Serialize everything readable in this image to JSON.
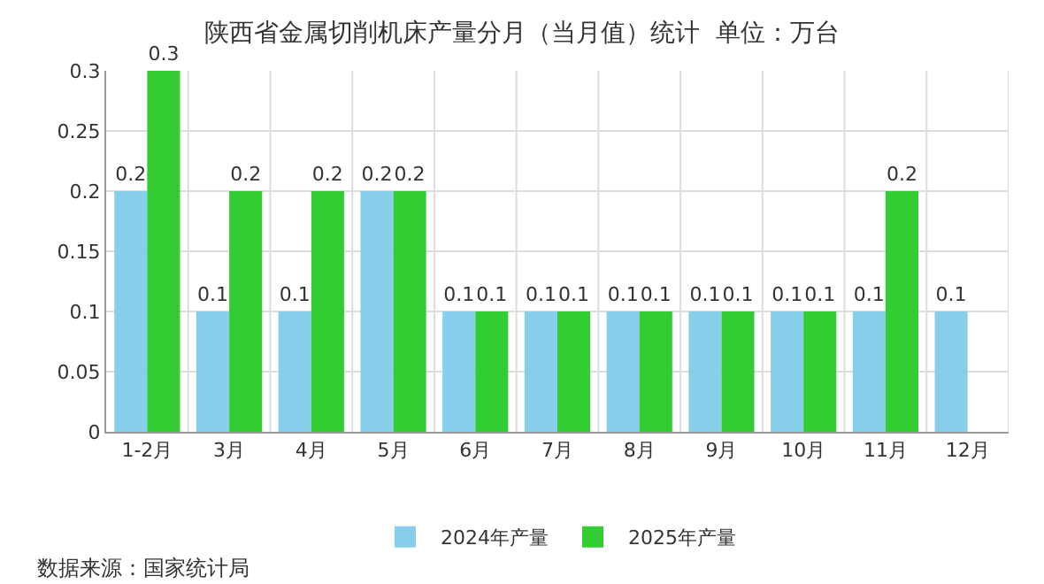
{
  "chart_data": {
    "type": "bar",
    "title": "陕西省金属切削机床产量分月（当月值）统计  单位：万台",
    "categories": [
      "1-2月",
      "3月",
      "4月",
      "5月",
      "6月",
      "7月",
      "8月",
      "9月",
      "10月",
      "11月",
      "12月"
    ],
    "series": [
      {
        "name": "2024年产量",
        "color": "#87ceeb",
        "values": [
          0.2,
          0.1,
          0.1,
          0.2,
          0.1,
          0.1,
          0.1,
          0.1,
          0.1,
          0.1,
          0.1
        ]
      },
      {
        "name": "2025年产量",
        "color": "#33cc33",
        "values": [
          0.3,
          0.2,
          0.2,
          0.2,
          0.1,
          0.1,
          0.1,
          0.1,
          0.1,
          0.2,
          null
        ]
      }
    ],
    "ylim": [
      0,
      0.3
    ],
    "yticks": [
      0,
      0.05,
      0.1,
      0.15,
      0.2,
      0.25,
      0.3
    ],
    "grid": true,
    "legend": "bottom",
    "data_labels": true,
    "annotations": [
      "数据来源：国家统计局"
    ]
  }
}
